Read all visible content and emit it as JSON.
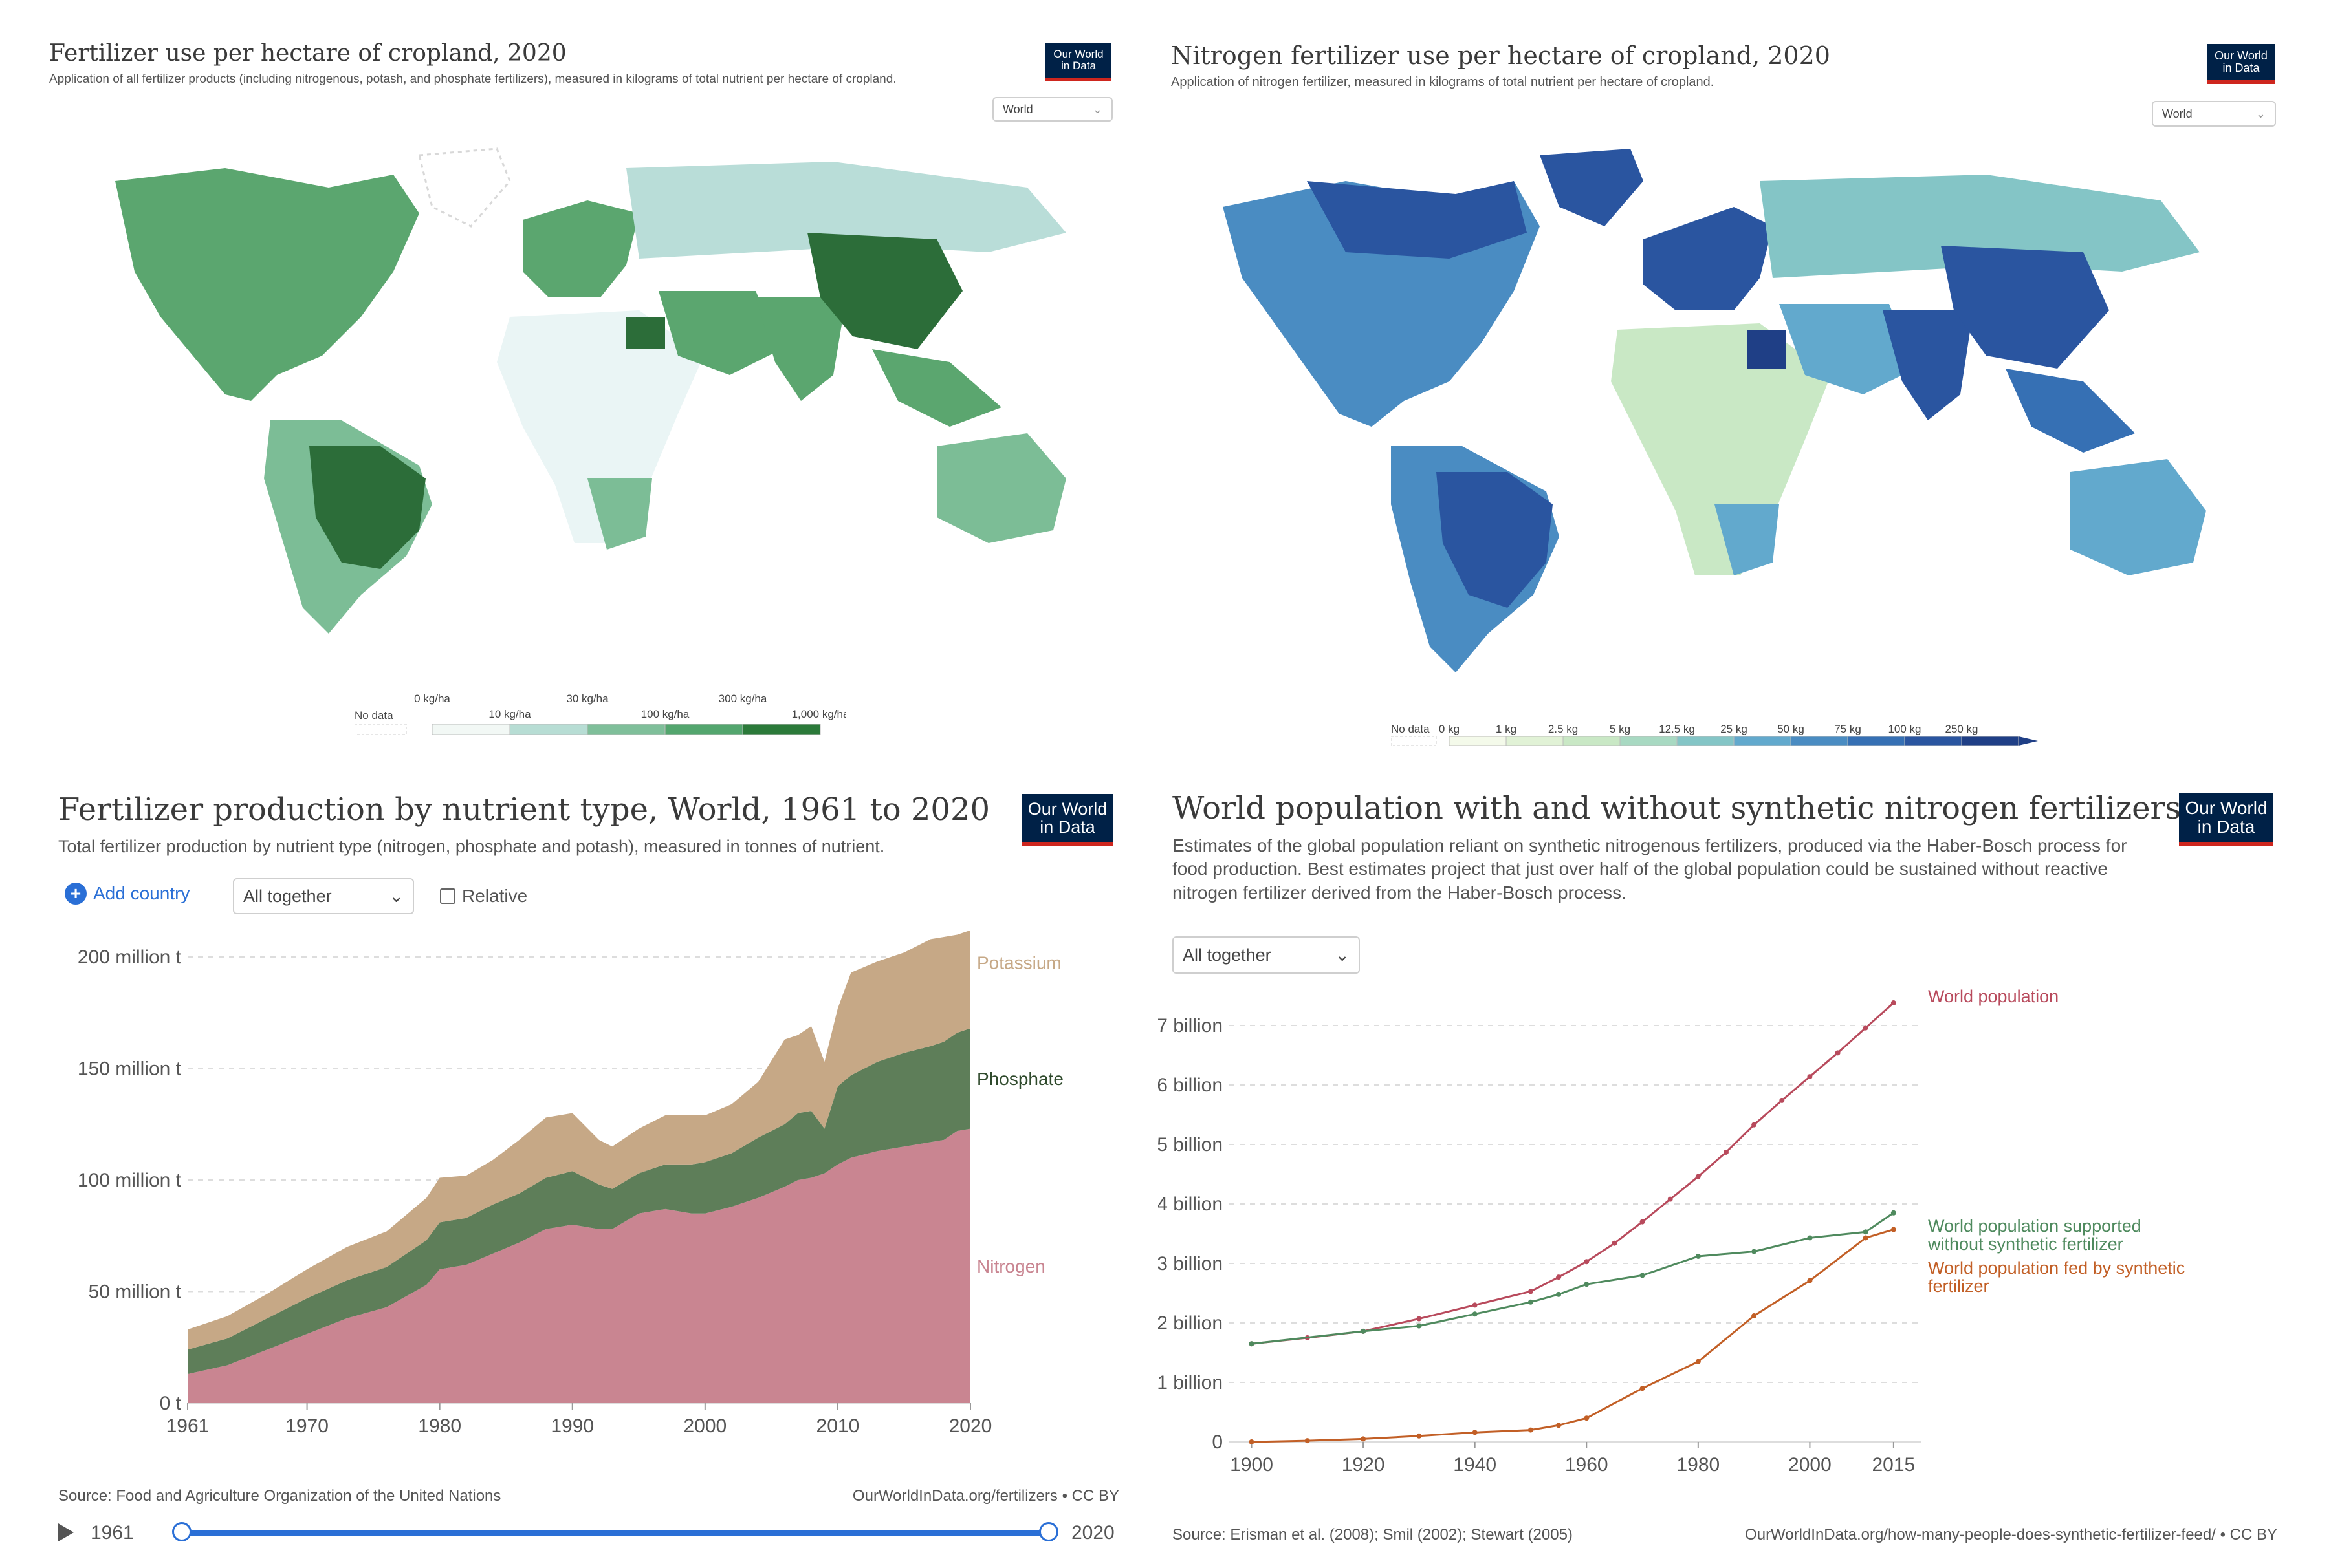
{
  "logo": {
    "line1": "Our World",
    "line2": "in Data"
  },
  "map1": {
    "title": "Fertilizer use per hectare of cropland, 2020",
    "subtitle": "Application of all fertilizer products (including nitrogenous, potash, and phosphate fertilizers), measured in kilograms of total nutrient per hectare of cropland.",
    "region": "World",
    "legend": {
      "no_data": "No data",
      "top": [
        "0 kg/ha",
        "30 kg/ha",
        "300 kg/ha"
      ],
      "bottom": [
        "10 kg/ha",
        "100 kg/ha",
        "1,000 kg/ha"
      ],
      "colors": [
        "#f2f8f5",
        "#b7ddd4",
        "#7fbf9a",
        "#53a66e",
        "#2b7a3a"
      ]
    }
  },
  "map2": {
    "title": "Nitrogen fertilizer use per hectare of cropland, 2020",
    "subtitle": "Application of nitrogen fertilizer, measured in kilograms of total nutrient per hectare of cropland.",
    "region": "World",
    "legend": {
      "no_data": "No data",
      "labels": [
        "0 kg",
        "1 kg",
        "2.5 kg",
        "5 kg",
        "12.5 kg",
        "25 kg",
        "50 kg",
        "75 kg",
        "100 kg",
        "250 kg"
      ],
      "colors": [
        "#f4faea",
        "#e1f2d6",
        "#c9e8c5",
        "#a8d9c2",
        "#84c5c6",
        "#62a9cd",
        "#4a8cc2",
        "#3670b4",
        "#2a55a0",
        "#1f3f86"
      ]
    }
  },
  "chart1": {
    "title": "Fertilizer production by nutrient type, World, 1961 to 2020",
    "subtitle": "Total fertilizer production by nutrient type (nitrogen, phosphate and potash), measured in tonnes of nutrient.",
    "add_country": "Add country",
    "mode": "All together",
    "relative": "Relative",
    "source": "Source: Food and Agriculture Organization of the United Nations",
    "url": "OurWorldInData.org/fertilizers • CC BY",
    "timeline_start": "1961",
    "timeline_end": "2020"
  },
  "chart2": {
    "title": "World population with and without synthetic nitrogen fertilizers",
    "subtitle": "Estimates of the global population reliant on synthetic nitrogenous fertilizers, produced via the Haber-Bosch process for food production. Best estimates project that just over half of the global population could be sustained without reactive nitrogen fertilizer derived from the Haber-Bosch process.",
    "mode": "All together",
    "source": "Source: Erisman et al. (2008); Smil (2002); Stewart (2005)",
    "url": "OurWorldInData.org/how-many-people-does-synthetic-fertilizer-feed/ • CC BY"
  },
  "chart_data": [
    {
      "type": "area",
      "title": "Fertilizer production by nutrient type, World, 1961 to 2020",
      "stacked": true,
      "ylim": [
        0,
        200000000
      ],
      "yticks": [
        {
          "v": 0,
          "label": "0 t"
        },
        {
          "v": 50000000,
          "label": "50 million t"
        },
        {
          "v": 100000000,
          "label": "100 million t"
        },
        {
          "v": 150000000,
          "label": "150 million t"
        },
        {
          "v": 200000000,
          "label": "200 million t"
        }
      ],
      "xticks": [
        "1961",
        "1970",
        "1980",
        "1990",
        "2000",
        "2010",
        "2020"
      ],
      "x": [
        1961,
        1964,
        1967,
        1970,
        1973,
        1976,
        1979,
        1980,
        1982,
        1984,
        1986,
        1988,
        1990,
        1992,
        1993,
        1995,
        1997,
        1999,
        2000,
        2002,
        2004,
        2006,
        2007,
        2008,
        2009,
        2010,
        2011,
        2013,
        2015,
        2017,
        2018,
        2019,
        2020
      ],
      "series": [
        {
          "name": "Nitrogen",
          "color": "#c98591",
          "values": [
            13,
            17,
            24,
            31,
            38,
            43,
            53,
            60,
            62,
            67,
            72,
            78,
            80,
            78,
            78,
            85,
            87,
            85,
            85,
            88,
            92,
            97,
            100,
            101,
            103,
            107,
            110,
            113,
            115,
            117,
            118,
            122,
            123
          ]
        },
        {
          "name": "Phosphate",
          "color": "#5e7e59",
          "values": [
            11,
            12,
            14,
            16,
            17,
            18,
            20,
            21,
            21,
            22,
            22,
            23,
            24,
            20,
            18,
            18,
            20,
            22,
            23,
            24,
            27,
            28,
            30,
            30,
            20,
            35,
            37,
            40,
            42,
            43,
            44,
            44,
            45
          ]
        },
        {
          "name": "Potassium",
          "color": "#c6a886",
          "values": [
            9,
            10,
            11,
            13,
            15,
            16,
            19,
            20,
            19,
            20,
            24,
            27,
            26,
            20,
            19,
            20,
            22,
            22,
            21,
            22,
            25,
            38,
            35,
            38,
            30,
            35,
            46,
            45,
            45,
            48,
            47,
            44,
            44
          ]
        }
      ]
    },
    {
      "type": "line",
      "title": "World population with and without synthetic nitrogen fertilizers",
      "ylim": [
        0,
        7500000000
      ],
      "yticks": [
        {
          "v": 0,
          "label": "0"
        },
        {
          "v": 1000000000,
          "label": "1 billion"
        },
        {
          "v": 2000000000,
          "label": "2 billion"
        },
        {
          "v": 3000000000,
          "label": "3 billion"
        },
        {
          "v": 4000000000,
          "label": "4 billion"
        },
        {
          "v": 5000000000,
          "label": "5 billion"
        },
        {
          "v": 6000000000,
          "label": "6 billion"
        },
        {
          "v": 7000000000,
          "label": "7 billion"
        }
      ],
      "xticks": [
        "1900",
        "1920",
        "1940",
        "1960",
        "1980",
        "2000",
        "2015"
      ],
      "series": [
        {
          "name": "World population",
          "color": "#b84a5c",
          "points": [
            [
              1900,
              1.65
            ],
            [
              1910,
              1.75
            ],
            [
              1920,
              1.86
            ],
            [
              1930,
              2.07
            ],
            [
              1940,
              2.3
            ],
            [
              1950,
              2.53
            ],
            [
              1955,
              2.77
            ],
            [
              1960,
              3.03
            ],
            [
              1965,
              3.34
            ],
            [
              1970,
              3.7
            ],
            [
              1975,
              4.08
            ],
            [
              1980,
              4.46
            ],
            [
              1985,
              4.87
            ],
            [
              1990,
              5.33
            ],
            [
              1995,
              5.74
            ],
            [
              2000,
              6.14
            ],
            [
              2005,
              6.54
            ],
            [
              2010,
              6.96
            ],
            [
              2015,
              7.38
            ]
          ]
        },
        {
          "name": "World population supported without synthetic fertilizer",
          "color": "#4f8a5e",
          "points": [
            [
              1900,
              1.65
            ],
            [
              1920,
              1.86
            ],
            [
              1930,
              1.95
            ],
            [
              1940,
              2.15
            ],
            [
              1950,
              2.35
            ],
            [
              1955,
              2.48
            ],
            [
              1960,
              2.65
            ],
            [
              1970,
              2.8
            ],
            [
              1980,
              3.12
            ],
            [
              1990,
              3.2
            ],
            [
              2000,
              3.43
            ],
            [
              2010,
              3.53
            ],
            [
              2015,
              3.85
            ]
          ]
        },
        {
          "name": "World population fed by synthetic fertilizer",
          "color": "#c25f26",
          "points": [
            [
              1900,
              0.0
            ],
            [
              1910,
              0.02
            ],
            [
              1920,
              0.05
            ],
            [
              1930,
              0.1
            ],
            [
              1940,
              0.16
            ],
            [
              1950,
              0.2
            ],
            [
              1955,
              0.28
            ],
            [
              1960,
              0.4
            ],
            [
              1970,
              0.9
            ],
            [
              1980,
              1.35
            ],
            [
              1990,
              2.12
            ],
            [
              2000,
              2.71
            ],
            [
              2010,
              3.43
            ],
            [
              2015,
              3.57
            ]
          ]
        }
      ]
    }
  ]
}
